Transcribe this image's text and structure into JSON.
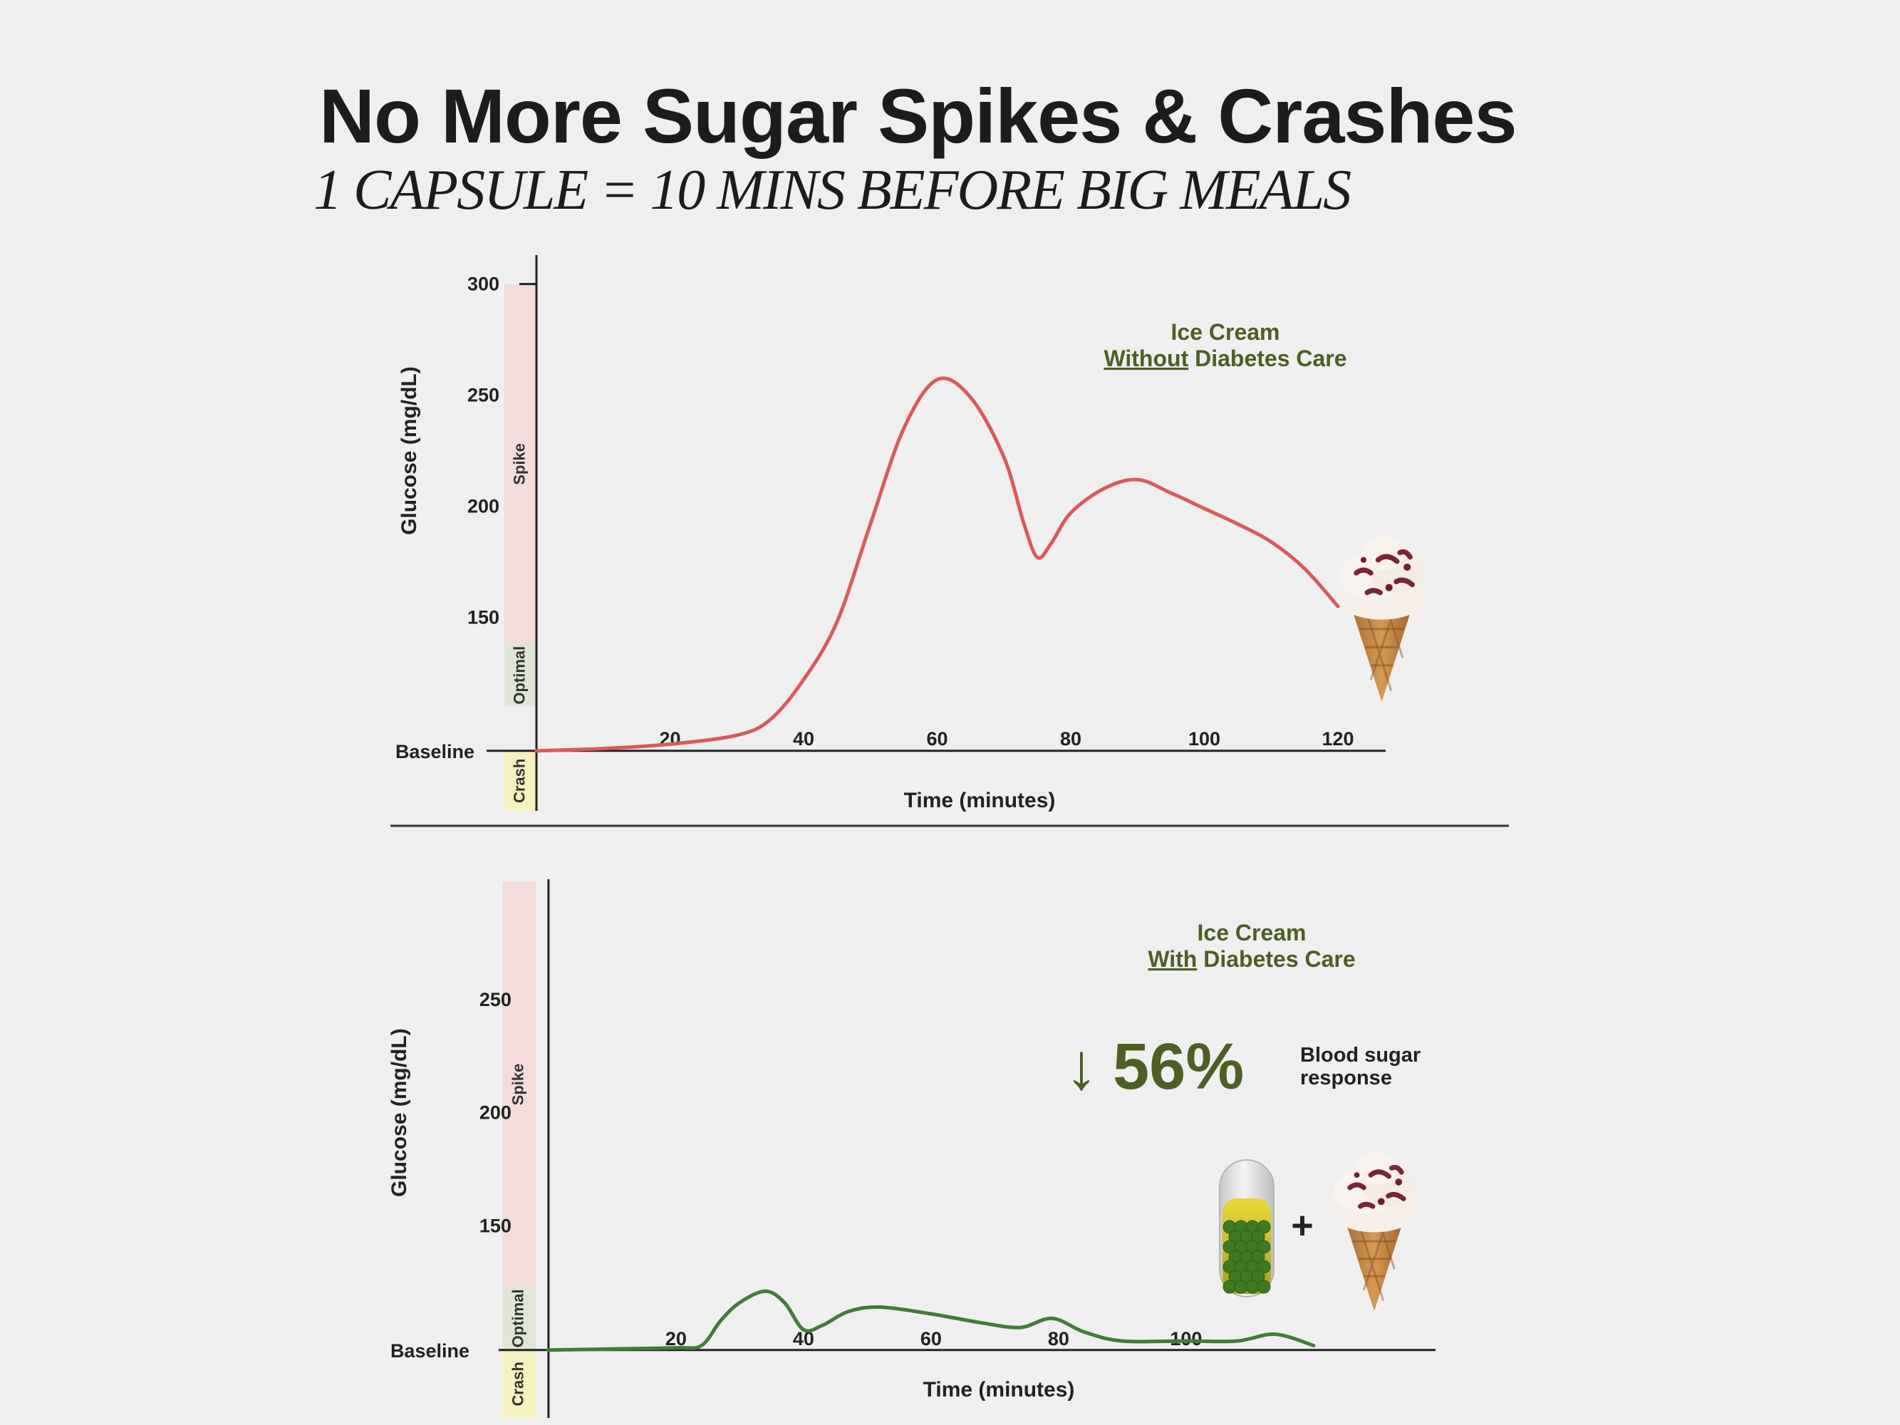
{
  "header": {
    "title": "No More Sugar Spikes & Crashes",
    "subtitle": "1 CAPSULE = 10 MINS BEFORE BIG MEALS"
  },
  "colors": {
    "spike_zone": "#f2dcdc",
    "optimal_zone": "#dfe6d6",
    "crash_zone": "#f5f2bf",
    "line_without": "#d95a5a",
    "line_with": "#3f7d35",
    "accent_text": "#4d5f22"
  },
  "chart_data": [
    {
      "type": "line",
      "legend_line1": "Ice Cream",
      "legend_emph": "Without",
      "legend_rest": " Diabetes Care",
      "xlabel": "Time (minutes)",
      "ylabel": "Glucose (mg/dL)",
      "baseline_label": "Baseline",
      "baseline_value": 90,
      "xlim": [
        0,
        128
      ],
      "ylim": [
        63,
        305
      ],
      "x_ticks": [
        20,
        40,
        60,
        80,
        100,
        120
      ],
      "y_ticks": [
        150,
        200,
        250,
        300
      ],
      "zones": [
        {
          "label": "Spike",
          "from": 138,
          "to": 300
        },
        {
          "label": "Optimal",
          "from": 110,
          "to": 138
        },
        {
          "label": "Crash",
          "from": 63,
          "to": 90
        }
      ],
      "series": [
        {
          "x": [
            0,
            10,
            20,
            30,
            35,
            40,
            45,
            50,
            55,
            60,
            65,
            70,
            73,
            75,
            77,
            80,
            85,
            90,
            95,
            100,
            105,
            110,
            115,
            120
          ],
          "y": [
            90,
            91,
            93,
            97,
            104,
            122,
            148,
            192,
            235,
            257,
            249,
            222,
            192,
            177,
            183,
            197,
            208,
            212,
            206,
            199,
            192,
            184,
            172,
            155
          ]
        }
      ],
      "image": "ice-cream-cone"
    },
    {
      "type": "line",
      "legend_line1": "Ice Cream",
      "legend_emph": "With",
      "legend_rest": " Diabetes Care",
      "xlabel": "Time (minutes)",
      "ylabel": "Glucose (mg/dL)",
      "baseline_label": "Baseline",
      "baseline_value": 95,
      "xlim": [
        -2,
        139
      ],
      "ylim": [
        65,
        302
      ],
      "x_ticks": [
        20,
        40,
        60,
        80,
        100
      ],
      "y_ticks": [
        150,
        200,
        250
      ],
      "zones": [
        {
          "label": "Spike",
          "from": 123,
          "to": 302
        },
        {
          "label": "Optimal",
          "from": 95,
          "to": 123
        },
        {
          "label": "Crash",
          "from": 65,
          "to": 95
        }
      ],
      "series": [
        {
          "x": [
            0,
            10,
            20,
            24,
            27,
            30,
            34,
            37,
            40,
            43,
            47,
            52,
            60,
            68,
            74,
            79,
            84,
            90,
            100,
            108,
            114,
            120
          ],
          "y": [
            95,
            95.5,
            96,
            97,
            108,
            116,
            121,
            116,
            104,
            106,
            112,
            114,
            111,
            107,
            105,
            109,
            103,
            99,
            99,
            99,
            102,
            97
          ]
        }
      ],
      "callout": {
        "arrow": "↓",
        "value": "56%",
        "line1": "Blood sugar",
        "line2": "response"
      },
      "image": "capsule-plus-ice-cream",
      "plus": "+"
    }
  ]
}
